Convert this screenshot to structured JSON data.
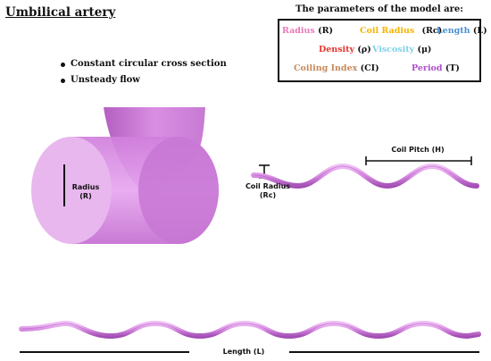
{
  "title": "Umbilical artery",
  "bullets": [
    "Constant circular cross section",
    "Unsteady flow"
  ],
  "params": {
    "heading": "The parameters of the model are:",
    "items": [
      {
        "name": "Radius",
        "symbol": "(R)",
        "color": "#e879b8"
      },
      {
        "name": "Coil Radius",
        "symbol": "(Rc)",
        "color": "#f4b400"
      },
      {
        "name": "Length",
        "symbol": "(L)",
        "color": "#4a8fd6"
      },
      {
        "name": "Density",
        "symbol": "(ρ)",
        "color": "#e3342f"
      },
      {
        "name": "Viscosity",
        "symbol": "(μ)",
        "color": "#7fd1e8"
      },
      {
        "name": "Coiling Index",
        "symbol": "(CI)",
        "color": "#c8895a"
      },
      {
        "name": "Period",
        "symbol": "(T)",
        "color": "#b04fc9"
      }
    ]
  },
  "labels": {
    "radius": "Radius",
    "radius_sym": "(R)",
    "coil_radius": "Coil Radius",
    "coil_radius_sym": "(Rc)",
    "coil_pitch": "Coil Pitch (H)",
    "length": "Length (L)"
  },
  "colors": {
    "vessel": "#d98ee3",
    "vessel_dark": "#b35fc0",
    "vessel_light": "#e8b7ee"
  }
}
